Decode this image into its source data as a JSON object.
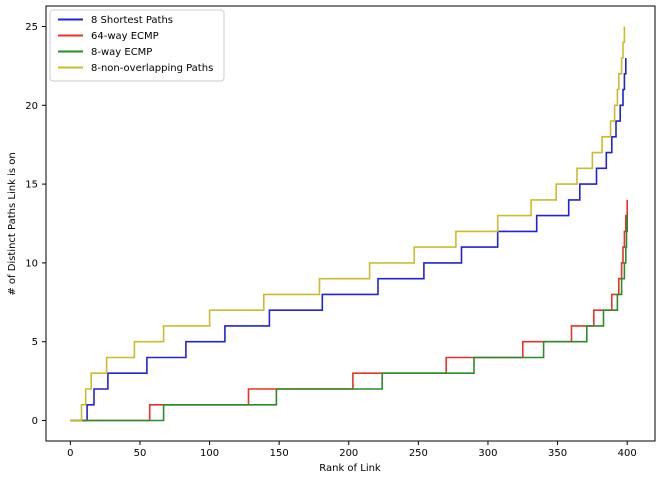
{
  "figure": {
    "background": "#ffffff"
  },
  "chart_data": {
    "type": "line",
    "subtype": "step-post",
    "title": "",
    "xlabel": "Rank of Link",
    "ylabel": "# of Distinct Paths Link is on",
    "xlim": [
      -17.5,
      420
    ],
    "ylim": [
      -1.3,
      26.3
    ],
    "xticks": [
      0,
      50,
      100,
      150,
      200,
      250,
      300,
      350,
      400
    ],
    "yticks": [
      0,
      5,
      10,
      15,
      20,
      25
    ],
    "grid": false,
    "legend_position": "upper-left",
    "legend_border_color": "#cccccc",
    "spine_color": "#000000",
    "series": [
      {
        "name": "8 Shortest Paths",
        "color": "#2323d3",
        "points": [
          [
            0,
            0
          ],
          [
            12,
            1
          ],
          [
            17,
            2
          ],
          [
            27,
            3
          ],
          [
            55,
            4
          ],
          [
            83,
            5
          ],
          [
            111,
            6
          ],
          [
            143,
            7
          ],
          [
            181,
            8
          ],
          [
            221,
            9
          ],
          [
            254,
            10
          ],
          [
            281,
            11
          ],
          [
            307,
            12
          ],
          [
            335,
            13
          ],
          [
            358,
            14
          ],
          [
            366,
            15
          ],
          [
            378,
            16
          ],
          [
            385,
            17
          ],
          [
            389,
            18
          ],
          [
            392,
            19
          ],
          [
            395,
            20
          ],
          [
            397,
            21
          ],
          [
            398,
            22
          ],
          [
            399,
            23
          ]
        ]
      },
      {
        "name": "64-way ECMP",
        "color": "#e8322a",
        "points": [
          [
            0,
            0
          ],
          [
            57,
            1
          ],
          [
            128,
            2
          ],
          [
            203,
            3
          ],
          [
            270,
            4
          ],
          [
            325,
            5
          ],
          [
            360,
            6
          ],
          [
            376,
            7
          ],
          [
            389,
            8
          ],
          [
            394,
            9
          ],
          [
            396,
            10
          ],
          [
            397,
            11
          ],
          [
            398,
            12
          ],
          [
            399,
            13
          ],
          [
            400,
            14
          ]
        ]
      },
      {
        "name": "8-way ECMP",
        "color": "#2a8c2a",
        "points": [
          [
            0,
            0
          ],
          [
            67,
            1
          ],
          [
            148,
            2
          ],
          [
            224,
            3
          ],
          [
            290,
            4
          ],
          [
            340,
            5
          ],
          [
            371,
            6
          ],
          [
            383,
            7
          ],
          [
            393,
            8
          ],
          [
            396,
            9
          ],
          [
            398,
            10
          ],
          [
            399,
            11
          ],
          [
            399.5,
            12
          ],
          [
            400,
            13
          ]
        ]
      },
      {
        "name": "8-non-overlapping Paths",
        "color": "#c9bd2f",
        "points": [
          [
            0,
            0
          ],
          [
            8,
            1
          ],
          [
            11,
            2
          ],
          [
            15,
            3
          ],
          [
            26,
            4
          ],
          [
            46,
            5
          ],
          [
            67,
            6
          ],
          [
            100,
            7
          ],
          [
            139,
            8
          ],
          [
            179,
            9
          ],
          [
            215,
            10
          ],
          [
            247,
            11
          ],
          [
            277,
            12
          ],
          [
            307,
            13
          ],
          [
            331,
            14
          ],
          [
            349,
            15
          ],
          [
            364,
            16
          ],
          [
            375,
            17
          ],
          [
            382,
            18
          ],
          [
            388,
            19
          ],
          [
            391,
            20
          ],
          [
            393,
            21
          ],
          [
            394,
            22
          ],
          [
            396,
            23
          ],
          [
            397,
            24
          ],
          [
            398,
            25
          ]
        ]
      }
    ]
  }
}
